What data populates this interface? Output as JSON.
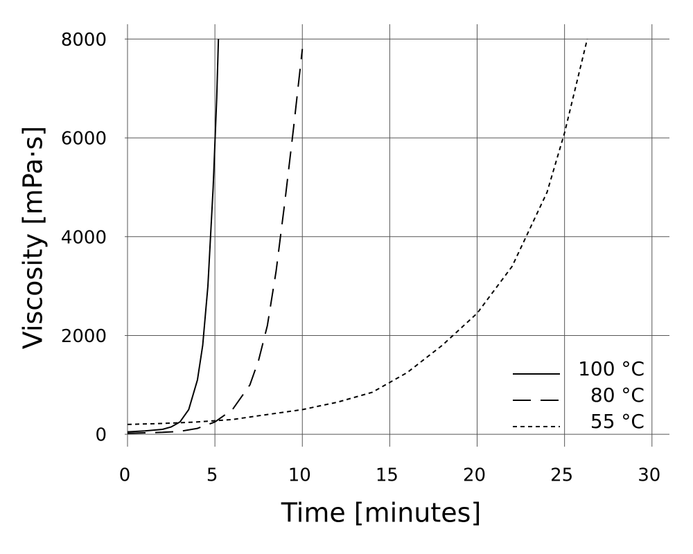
{
  "chart_data": {
    "type": "line",
    "x_label": "Time [minutes]",
    "y_label": "Viscosity [mPa·s]",
    "xlim": [
      0,
      31
    ],
    "ylim": [
      -250,
      8300
    ],
    "xticks": [
      0,
      5,
      10,
      15,
      20,
      25,
      30
    ],
    "yticks": [
      0,
      2000,
      4000,
      6000,
      8000
    ],
    "grid": true,
    "legend": "lower right",
    "series": [
      {
        "name": "100 °C",
        "color": "#000000",
        "dash": "solid",
        "x": [
          0,
          1,
          2,
          2.5,
          3,
          3.5,
          4,
          4.3,
          4.6,
          4.9,
          5.1,
          5.2
        ],
        "values": [
          50,
          70,
          100,
          150,
          250,
          500,
          1100,
          1800,
          3000,
          5000,
          6800,
          8000
        ]
      },
      {
        "name": "80 °C",
        "color": "#000000",
        "dash": "dashed",
        "x": [
          0,
          1,
          2,
          3,
          4,
          5,
          6,
          7,
          7.5,
          8,
          8.5,
          9,
          9.5,
          10
        ],
        "values": [
          20,
          30,
          40,
          60,
          120,
          250,
          500,
          1000,
          1500,
          2200,
          3300,
          4700,
          6200,
          7800
        ]
      },
      {
        "name": "55 °C",
        "color": "#000000",
        "dash": "dotted",
        "x": [
          0,
          2,
          4,
          6,
          8,
          10,
          12,
          14,
          16,
          18,
          20,
          22,
          24,
          25,
          26.3
        ],
        "values": [
          200,
          220,
          250,
          300,
          400,
          500,
          650,
          850,
          1250,
          1800,
          2450,
          3400,
          4900,
          6100,
          8000
        ]
      }
    ]
  }
}
